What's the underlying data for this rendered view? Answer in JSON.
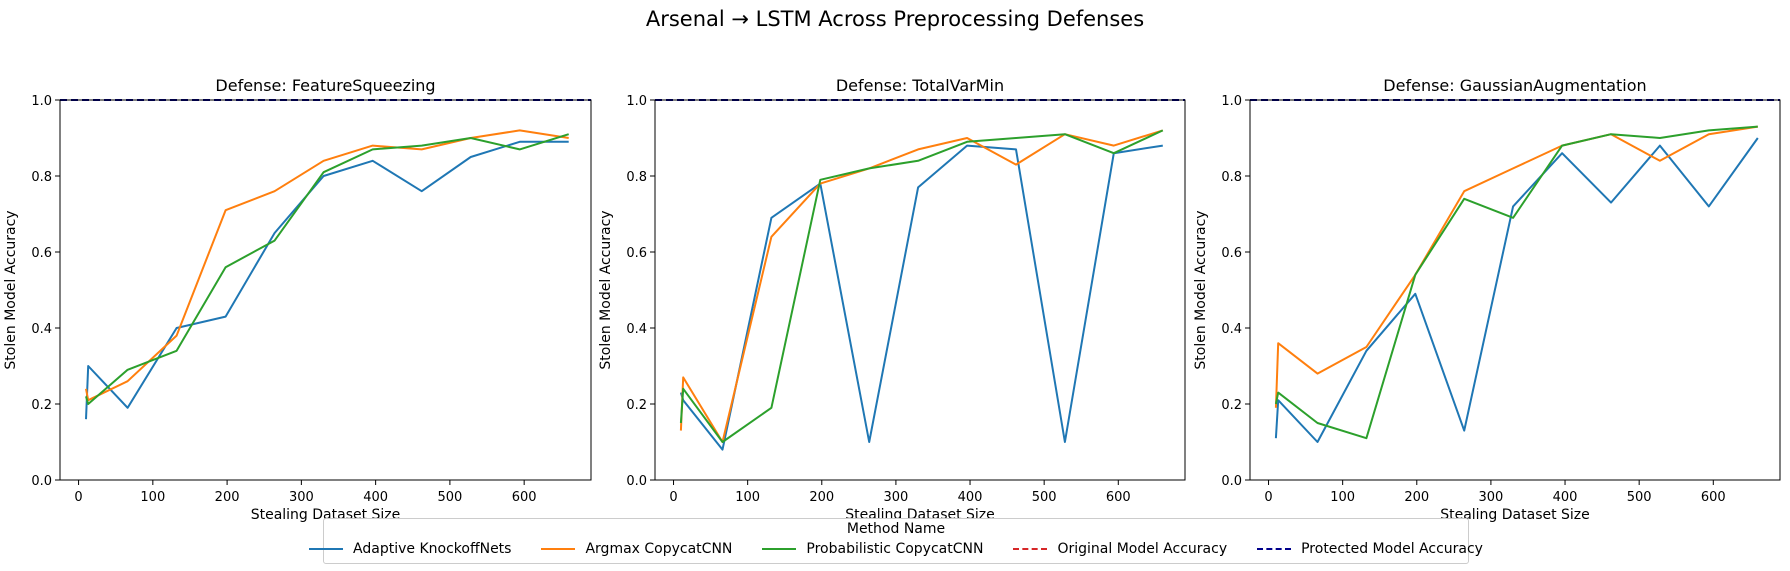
{
  "figure": {
    "suptitle": "Arsenal → LSTM Across Preprocessing Defenses",
    "legend": {
      "title": "Method Name",
      "entries": [
        {
          "label": "Adaptive KnockoffNets",
          "color": "#1f77b4",
          "style": "solid"
        },
        {
          "label": "Argmax CopycatCNN",
          "color": "#ff7f0e",
          "style": "solid"
        },
        {
          "label": "Probabilistic CopycatCNN",
          "color": "#2ca02c",
          "style": "solid"
        },
        {
          "label": "Original Model Accuracy",
          "color": "#d62728",
          "style": "dashed"
        },
        {
          "label": "Protected Model Accuracy",
          "color": "#00008b",
          "style": "dashed"
        }
      ]
    }
  },
  "chart_data": [
    {
      "type": "line",
      "title": "Defense: FeatureSqueezing",
      "xlabel": "Stealing Dataset Size",
      "ylabel": "Stolen Model Accuracy",
      "xlim": [
        -25,
        690
      ],
      "ylim": [
        0.0,
        1.0
      ],
      "xticks": [
        0,
        100,
        200,
        300,
        400,
        500,
        600
      ],
      "yticks": [
        0.0,
        0.2,
        0.4,
        0.6,
        0.8,
        1.0
      ],
      "hlines": [
        {
          "name": "Original Model Accuracy",
          "y": 1.0,
          "color": "#d62728"
        },
        {
          "name": "Protected Model Accuracy",
          "y": 1.0,
          "color": "#00008b"
        }
      ],
      "series": [
        {
          "name": "Adaptive KnockoffNets",
          "color": "#1f77b4",
          "x": [
            10,
            13,
            66,
            132,
            198,
            264,
            330,
            396,
            462,
            528,
            594,
            660
          ],
          "y": [
            0.16,
            0.3,
            0.19,
            0.4,
            0.43,
            0.65,
            0.8,
            0.84,
            0.76,
            0.85,
            0.89,
            0.89
          ]
        },
        {
          "name": "Argmax CopycatCNN",
          "color": "#ff7f0e",
          "x": [
            10,
            13,
            66,
            132,
            198,
            264,
            330,
            396,
            462,
            528,
            594,
            660
          ],
          "y": [
            0.24,
            0.21,
            0.26,
            0.38,
            0.71,
            0.76,
            0.84,
            0.88,
            0.87,
            0.9,
            0.92,
            0.9
          ]
        },
        {
          "name": "Probabilistic CopycatCNN",
          "color": "#2ca02c",
          "x": [
            10,
            13,
            66,
            132,
            198,
            264,
            330,
            396,
            462,
            528,
            594,
            660
          ],
          "y": [
            0.22,
            0.2,
            0.29,
            0.34,
            0.56,
            0.63,
            0.81,
            0.87,
            0.88,
            0.9,
            0.87,
            0.91
          ]
        }
      ]
    },
    {
      "type": "line",
      "title": "Defense: TotalVarMin",
      "xlabel": "Stealing Dataset Size",
      "ylabel": "Stolen Model Accuracy",
      "xlim": [
        -25,
        690
      ],
      "ylim": [
        0.0,
        1.0
      ],
      "xticks": [
        0,
        100,
        200,
        300,
        400,
        500,
        600
      ],
      "yticks": [
        0.0,
        0.2,
        0.4,
        0.6,
        0.8,
        1.0
      ],
      "hlines": [
        {
          "name": "Original Model Accuracy",
          "y": 1.0,
          "color": "#d62728"
        },
        {
          "name": "Protected Model Accuracy",
          "y": 1.0,
          "color": "#00008b"
        }
      ],
      "series": [
        {
          "name": "Adaptive KnockoffNets",
          "color": "#1f77b4",
          "x": [
            10,
            13,
            66,
            132,
            198,
            264,
            330,
            396,
            462,
            528,
            594,
            660
          ],
          "y": [
            0.23,
            0.21,
            0.08,
            0.69,
            0.78,
            0.1,
            0.77,
            0.88,
            0.87,
            0.1,
            0.86,
            0.88
          ]
        },
        {
          "name": "Argmax CopycatCNN",
          "color": "#ff7f0e",
          "x": [
            10,
            13,
            66,
            132,
            198,
            264,
            330,
            396,
            462,
            528,
            594,
            660
          ],
          "y": [
            0.13,
            0.27,
            0.1,
            0.64,
            0.78,
            0.82,
            0.87,
            0.9,
            0.83,
            0.91,
            0.88,
            0.92
          ]
        },
        {
          "name": "Probabilistic CopycatCNN",
          "color": "#2ca02c",
          "x": [
            10,
            13,
            66,
            132,
            198,
            264,
            330,
            396,
            462,
            528,
            594,
            660
          ],
          "y": [
            0.15,
            0.24,
            0.1,
            0.19,
            0.79,
            0.82,
            0.84,
            0.89,
            0.9,
            0.91,
            0.86,
            0.92
          ]
        }
      ]
    },
    {
      "type": "line",
      "title": "Defense: GaussianAugmentation",
      "xlabel": "Stealing Dataset Size",
      "ylabel": "Stolen Model Accuracy",
      "xlim": [
        -25,
        690
      ],
      "ylim": [
        0.0,
        1.0
      ],
      "xticks": [
        0,
        100,
        200,
        300,
        400,
        500,
        600
      ],
      "yticks": [
        0.0,
        0.2,
        0.4,
        0.6,
        0.8,
        1.0
      ],
      "hlines": [
        {
          "name": "Original Model Accuracy",
          "y": 1.0,
          "color": "#d62728"
        },
        {
          "name": "Protected Model Accuracy",
          "y": 1.0,
          "color": "#00008b"
        }
      ],
      "series": [
        {
          "name": "Adaptive KnockoffNets",
          "color": "#1f77b4",
          "x": [
            10,
            13,
            66,
            132,
            198,
            264,
            330,
            396,
            462,
            528,
            594,
            660
          ],
          "y": [
            0.11,
            0.21,
            0.1,
            0.34,
            0.49,
            0.13,
            0.72,
            0.86,
            0.73,
            0.88,
            0.72,
            0.9
          ]
        },
        {
          "name": "Argmax CopycatCNN",
          "color": "#ff7f0e",
          "x": [
            10,
            13,
            66,
            132,
            198,
            264,
            330,
            396,
            462,
            528,
            594,
            660
          ],
          "y": [
            0.19,
            0.36,
            0.28,
            0.35,
            0.54,
            0.76,
            0.82,
            0.88,
            0.91,
            0.84,
            0.91,
            0.93
          ]
        },
        {
          "name": "Probabilistic CopycatCNN",
          "color": "#2ca02c",
          "x": [
            10,
            13,
            66,
            132,
            198,
            264,
            330,
            396,
            462,
            528,
            594,
            660
          ],
          "y": [
            0.2,
            0.23,
            0.15,
            0.11,
            0.54,
            0.74,
            0.69,
            0.88,
            0.91,
            0.9,
            0.92,
            0.93
          ]
        }
      ]
    }
  ]
}
